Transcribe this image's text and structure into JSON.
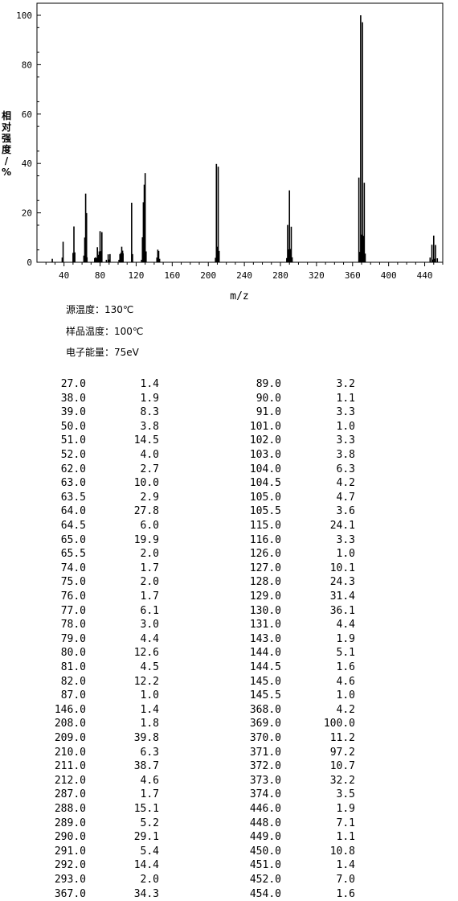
{
  "chart_data": {
    "type": "bar",
    "xlabel": "m/z",
    "ylabel": "相对强度/%",
    "xlim": [
      10,
      460
    ],
    "ylim": [
      0,
      100
    ],
    "xticks": [
      40,
      80,
      120,
      160,
      200,
      240,
      280,
      320,
      360,
      400,
      440
    ],
    "yticks": [
      0,
      20,
      40,
      60,
      80,
      100
    ],
    "grid": false,
    "peaks": [
      [
        27.0,
        1.4
      ],
      [
        38.0,
        1.9
      ],
      [
        39.0,
        8.3
      ],
      [
        50.0,
        3.8
      ],
      [
        51.0,
        14.5
      ],
      [
        52.0,
        4.0
      ],
      [
        62.0,
        2.7
      ],
      [
        63.0,
        10.0
      ],
      [
        63.5,
        2.9
      ],
      [
        64.0,
        27.8
      ],
      [
        64.5,
        6.0
      ],
      [
        65.0,
        19.9
      ],
      [
        65.5,
        2.0
      ],
      [
        74.0,
        1.7
      ],
      [
        75.0,
        2.0
      ],
      [
        76.0,
        1.7
      ],
      [
        77.0,
        6.1
      ],
      [
        78.0,
        3.0
      ],
      [
        79.0,
        4.4
      ],
      [
        80.0,
        12.6
      ],
      [
        81.0,
        4.5
      ],
      [
        82.0,
        12.2
      ],
      [
        87.0,
        1.0
      ],
      [
        89.0,
        3.2
      ],
      [
        90.0,
        1.1
      ],
      [
        91.0,
        3.3
      ],
      [
        101.0,
        1.0
      ],
      [
        102.0,
        3.3
      ],
      [
        103.0,
        3.8
      ],
      [
        104.0,
        6.3
      ],
      [
        104.5,
        4.2
      ],
      [
        105.0,
        4.7
      ],
      [
        105.5,
        3.6
      ],
      [
        115.0,
        24.1
      ],
      [
        116.0,
        3.3
      ],
      [
        126.0,
        1.0
      ],
      [
        127.0,
        10.1
      ],
      [
        128.0,
        24.3
      ],
      [
        129.0,
        31.4
      ],
      [
        130.0,
        36.1
      ],
      [
        131.0,
        4.4
      ],
      [
        143.0,
        1.9
      ],
      [
        144.0,
        5.1
      ],
      [
        144.5,
        1.6
      ],
      [
        145.0,
        4.6
      ],
      [
        145.5,
        1.0
      ],
      [
        146.0,
        1.4
      ],
      [
        208.0,
        1.8
      ],
      [
        209.0,
        39.8
      ],
      [
        210.0,
        6.3
      ],
      [
        211.0,
        38.7
      ],
      [
        212.0,
        4.6
      ],
      [
        287.0,
        1.7
      ],
      [
        288.0,
        15.1
      ],
      [
        289.0,
        5.2
      ],
      [
        290.0,
        29.1
      ],
      [
        291.0,
        5.4
      ],
      [
        292.0,
        14.4
      ],
      [
        293.0,
        2.0
      ],
      [
        367.0,
        34.3
      ],
      [
        368.0,
        4.2
      ],
      [
        369.0,
        100.0
      ],
      [
        370.0,
        11.2
      ],
      [
        371.0,
        97.2
      ],
      [
        372.0,
        10.7
      ],
      [
        373.0,
        32.2
      ],
      [
        374.0,
        3.5
      ],
      [
        446.0,
        1.9
      ],
      [
        448.0,
        7.1
      ],
      [
        449.0,
        1.1
      ],
      [
        450.0,
        10.8
      ],
      [
        451.0,
        1.4
      ],
      [
        452.0,
        7.0
      ],
      [
        454.0,
        1.6
      ]
    ]
  },
  "conditions": {
    "source_temp": "源温度：130℃",
    "sample_temp": "样品温度：100℃",
    "electron_energy": "电子能量：75eV"
  },
  "table": {
    "left": [
      [
        "27.0",
        "1.4"
      ],
      [
        "38.0",
        "1.9"
      ],
      [
        "39.0",
        "8.3"
      ],
      [
        "50.0",
        "3.8"
      ],
      [
        "51.0",
        "14.5"
      ],
      [
        "52.0",
        "4.0"
      ],
      [
        "62.0",
        "2.7"
      ],
      [
        "63.0",
        "10.0"
      ],
      [
        "63.5",
        "2.9"
      ],
      [
        "64.0",
        "27.8"
      ],
      [
        "64.5",
        "6.0"
      ],
      [
        "65.0",
        "19.9"
      ],
      [
        "65.5",
        "2.0"
      ],
      [
        "74.0",
        "1.7"
      ],
      [
        "75.0",
        "2.0"
      ],
      [
        "76.0",
        "1.7"
      ],
      [
        "77.0",
        "6.1"
      ],
      [
        "78.0",
        "3.0"
      ],
      [
        "79.0",
        "4.4"
      ],
      [
        "80.0",
        "12.6"
      ],
      [
        "81.0",
        "4.5"
      ],
      [
        "82.0",
        "12.2"
      ],
      [
        "87.0",
        "1.0"
      ],
      [
        "146.0",
        "1.4"
      ],
      [
        "208.0",
        "1.8"
      ],
      [
        "209.0",
        "39.8"
      ],
      [
        "210.0",
        "6.3"
      ],
      [
        "211.0",
        "38.7"
      ],
      [
        "212.0",
        "4.6"
      ],
      [
        "287.0",
        "1.7"
      ],
      [
        "288.0",
        "15.1"
      ],
      [
        "289.0",
        "5.2"
      ],
      [
        "290.0",
        "29.1"
      ],
      [
        "291.0",
        "5.4"
      ],
      [
        "292.0",
        "14.4"
      ],
      [
        "293.0",
        "2.0"
      ],
      [
        "367.0",
        "34.3"
      ]
    ],
    "right": [
      [
        "89.0",
        "3.2"
      ],
      [
        "90.0",
        "1.1"
      ],
      [
        "91.0",
        "3.3"
      ],
      [
        "101.0",
        "1.0"
      ],
      [
        "102.0",
        "3.3"
      ],
      [
        "103.0",
        "3.8"
      ],
      [
        "104.0",
        "6.3"
      ],
      [
        "104.5",
        "4.2"
      ],
      [
        "105.0",
        "4.7"
      ],
      [
        "105.5",
        "3.6"
      ],
      [
        "115.0",
        "24.1"
      ],
      [
        "116.0",
        "3.3"
      ],
      [
        "126.0",
        "1.0"
      ],
      [
        "127.0",
        "10.1"
      ],
      [
        "128.0",
        "24.3"
      ],
      [
        "129.0",
        "31.4"
      ],
      [
        "130.0",
        "36.1"
      ],
      [
        "131.0",
        "4.4"
      ],
      [
        "143.0",
        "1.9"
      ],
      [
        "144.0",
        "5.1"
      ],
      [
        "144.5",
        "1.6"
      ],
      [
        "145.0",
        "4.6"
      ],
      [
        "145.5",
        "1.0"
      ],
      [
        "368.0",
        "4.2"
      ],
      [
        "369.0",
        "100.0"
      ],
      [
        "370.0",
        "11.2"
      ],
      [
        "371.0",
        "97.2"
      ],
      [
        "372.0",
        "10.7"
      ],
      [
        "373.0",
        "32.2"
      ],
      [
        "374.0",
        "3.5"
      ],
      [
        "446.0",
        "1.9"
      ],
      [
        "448.0",
        "7.1"
      ],
      [
        "449.0",
        "1.1"
      ],
      [
        "450.0",
        "10.8"
      ],
      [
        "451.0",
        "1.4"
      ],
      [
        "452.0",
        "7.0"
      ],
      [
        "454.0",
        "1.6"
      ]
    ]
  }
}
